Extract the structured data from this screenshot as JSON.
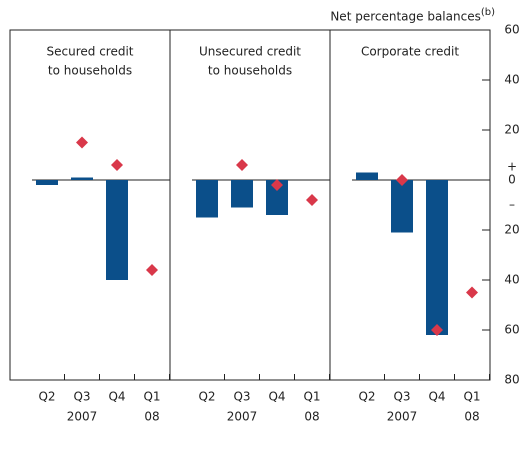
{
  "chart_data": {
    "type": "bar",
    "y_label": "Net percentage balances",
    "y_label_note": "(b)",
    "categories": [
      "Q2",
      "Q3",
      "Q4",
      "Q1"
    ],
    "year_labels": [
      null,
      "2007",
      null,
      "08"
    ],
    "ylim": [
      -80,
      60
    ],
    "yticks": [
      60,
      40,
      20,
      0,
      {
        "value": -20,
        "label": "20"
      },
      {
        "value": -40,
        "label": "40"
      },
      {
        "value": -60,
        "label": "60"
      },
      {
        "value": -80,
        "label": "80"
      }
    ],
    "sign_labels": [
      "+",
      "–"
    ],
    "panels": [
      {
        "title_lines": [
          "Secured credit",
          "to households"
        ],
        "series": [
          {
            "type": "bar",
            "color": "#0b4f8a",
            "values": [
              -2,
              1,
              -40,
              null
            ]
          },
          {
            "type": "diamond",
            "color": "#d9384a",
            "values": [
              null,
              15,
              6,
              -36
            ]
          }
        ]
      },
      {
        "title_lines": [
          "Unsecured credit",
          "to households"
        ],
        "series": [
          {
            "type": "bar",
            "color": "#0b4f8a",
            "values": [
              -15,
              -11,
              -14,
              null
            ]
          },
          {
            "type": "diamond",
            "color": "#d9384a",
            "values": [
              null,
              6,
              -2,
              -8
            ]
          }
        ]
      },
      {
        "title_lines": [
          "Corporate credit"
        ],
        "series": [
          {
            "type": "bar",
            "color": "#0b4f8a",
            "values": [
              3,
              -21,
              -62,
              null
            ]
          },
          {
            "type": "diamond",
            "color": "#d9384a",
            "values": [
              null,
              0,
              -60,
              -45
            ]
          }
        ]
      }
    ]
  }
}
